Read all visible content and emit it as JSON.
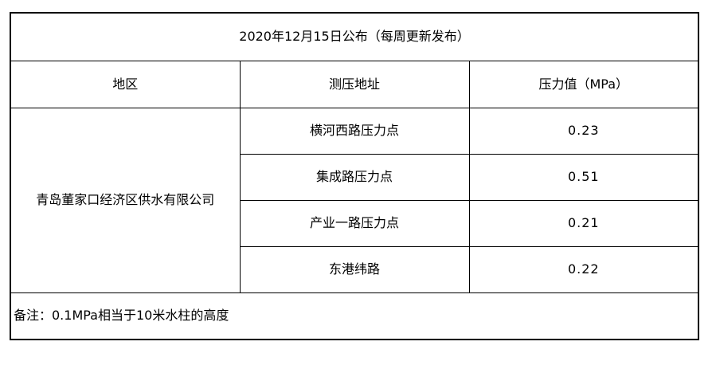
{
  "table": {
    "title": "2020年12月15日公布（每周更新发布）",
    "headers": [
      "地区",
      "测压地址",
      "压力值（MPa）"
    ],
    "region": "青岛董家口经济区供水有限公司",
    "rows": [
      {
        "address": "横河西路压力点",
        "value": "0.23"
      },
      {
        "address": "集成路压力点",
        "value": "0.51"
      },
      {
        "address": "产业一路压力点",
        "value": "0.21"
      },
      {
        "address": "东港纬路",
        "value": "0.22"
      }
    ],
    "note": "备注：0.1MPa相当于10米水柱的高度"
  },
  "colors": {
    "border": "#000000",
    "background": "#ffffff",
    "text": "#000000"
  }
}
